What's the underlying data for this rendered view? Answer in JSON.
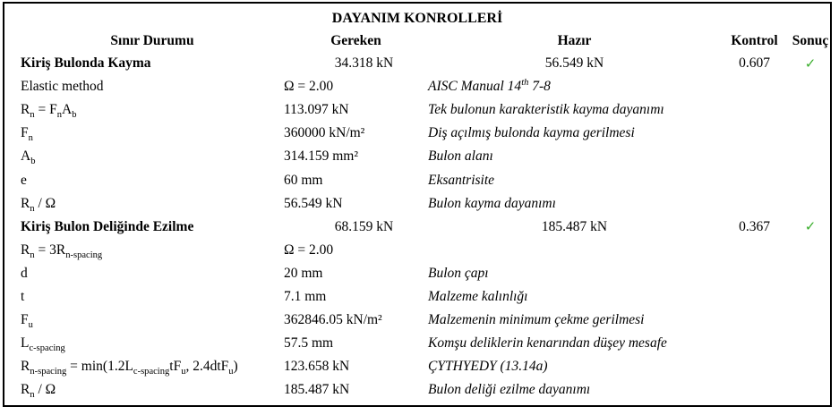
{
  "title": "DAYANIM KONROLLERİ",
  "columns": {
    "limit_state": "Sınır Durumu",
    "required": "Gereken",
    "available": "Hazır",
    "ratio": "Kontrol",
    "result": "Sonuç"
  },
  "result_pass_symbol": "✓",
  "result_pass_color": "#3aae2c",
  "rows": [
    {
      "type": "check",
      "name": [
        [
          "t",
          "Kiriş Bulonda Kayma"
        ]
      ],
      "gereken": "34.318 kN",
      "hazir": [
        [
          "t",
          "56.549 kN"
        ]
      ],
      "kontrol": "0.607",
      "pass": true
    },
    {
      "type": "sub",
      "name": [
        [
          "t",
          "Elastic method"
        ]
      ],
      "gereken": "Ω = 2.00",
      "hazir": [
        [
          "t",
          "AISC Manual 14"
        ],
        [
          "p",
          "th"
        ],
        [
          "t",
          " 7-8"
        ]
      ]
    },
    {
      "type": "sub",
      "name": [
        [
          "t",
          "R"
        ],
        [
          "s",
          "n"
        ],
        [
          "t",
          " = F"
        ],
        [
          "s",
          "n"
        ],
        [
          "t",
          "A"
        ],
        [
          "s",
          "b"
        ]
      ],
      "gereken": "113.097 kN",
      "hazir": [
        [
          "t",
          "Tek bulonun karakteristik kayma dayanımı"
        ]
      ]
    },
    {
      "type": "sub",
      "name": [
        [
          "t",
          "F"
        ],
        [
          "s",
          "n"
        ]
      ],
      "gereken": "360000 kN/m²",
      "hazir": [
        [
          "t",
          "Diş açılmış bulonda kayma gerilmesi"
        ]
      ]
    },
    {
      "type": "sub",
      "name": [
        [
          "t",
          "A"
        ],
        [
          "s",
          "b"
        ]
      ],
      "gereken": "314.159 mm²",
      "hazir": [
        [
          "t",
          "Bulon alanı"
        ]
      ]
    },
    {
      "type": "sub",
      "name": [
        [
          "t",
          "e"
        ]
      ],
      "gereken": "60 mm",
      "hazir": [
        [
          "t",
          "Eksantrisite"
        ]
      ]
    },
    {
      "type": "sub",
      "name": [
        [
          "t",
          "R"
        ],
        [
          "s",
          "n"
        ],
        [
          "t",
          " / Ω"
        ]
      ],
      "gereken": "56.549 kN",
      "hazir": [
        [
          "t",
          "Bulon kayma dayanımı"
        ]
      ]
    },
    {
      "type": "check",
      "name": [
        [
          "t",
          "Kiriş Bulon Deliğinde Ezilme"
        ]
      ],
      "gereken": "68.159 kN",
      "hazir": [
        [
          "t",
          "185.487 kN"
        ]
      ],
      "kontrol": "0.367",
      "pass": true
    },
    {
      "type": "sub",
      "name": [
        [
          "t",
          "R"
        ],
        [
          "s",
          "n"
        ],
        [
          "t",
          " = 3R"
        ],
        [
          "s",
          "n-spacing"
        ]
      ],
      "gereken": "Ω = 2.00",
      "hazir": []
    },
    {
      "type": "sub",
      "name": [
        [
          "t",
          "d"
        ]
      ],
      "gereken": "20 mm",
      "hazir": [
        [
          "t",
          "Bulon çapı"
        ]
      ]
    },
    {
      "type": "sub",
      "name": [
        [
          "t",
          "t"
        ]
      ],
      "gereken": "7.1 mm",
      "hazir": [
        [
          "t",
          "Malzeme kalınlığı"
        ]
      ]
    },
    {
      "type": "sub",
      "name": [
        [
          "t",
          "F"
        ],
        [
          "s",
          "u"
        ]
      ],
      "gereken": "362846.05 kN/m²",
      "hazir": [
        [
          "t",
          "Malzemenin minimum çekme gerilmesi"
        ]
      ]
    },
    {
      "type": "sub",
      "name": [
        [
          "t",
          "L"
        ],
        [
          "s",
          "c-spacing"
        ]
      ],
      "gereken": "57.5 mm",
      "hazir": [
        [
          "t",
          "Komşu deliklerin kenarından düşey mesafe"
        ]
      ]
    },
    {
      "type": "sub",
      "name": [
        [
          "t",
          "R"
        ],
        [
          "s",
          "n-spacing"
        ],
        [
          "t",
          " = min(1.2L"
        ],
        [
          "s",
          "c-spacing"
        ],
        [
          "t",
          "tF"
        ],
        [
          "s",
          "u"
        ],
        [
          "t",
          ", 2.4dtF"
        ],
        [
          "s",
          "u"
        ],
        [
          "t",
          ")"
        ]
      ],
      "gereken": "123.658 kN",
      "hazir": [
        [
          "t",
          "ÇYTHYEDY (13.14a)"
        ]
      ]
    },
    {
      "type": "sub",
      "name": [
        [
          "t",
          "R"
        ],
        [
          "s",
          "n"
        ],
        [
          "t",
          " / Ω"
        ]
      ],
      "gereken": "185.487 kN",
      "hazir": [
        [
          "t",
          "Bulon deliği ezilme dayanımı"
        ]
      ]
    }
  ]
}
